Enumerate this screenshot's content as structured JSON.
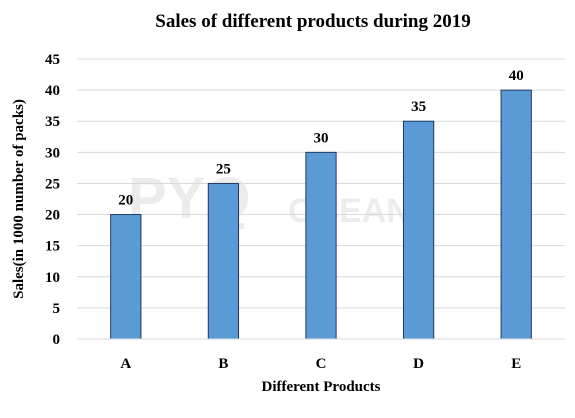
{
  "chart_data": {
    "type": "bar",
    "title": "Sales of different products during 2019",
    "xlabel": "Different Products",
    "ylabel": "Sales(in 1000 number of packs)",
    "categories": [
      "A",
      "B",
      "C",
      "D",
      "E"
    ],
    "values": [
      20,
      25,
      30,
      35,
      40
    ],
    "ylim": [
      0,
      45
    ],
    "yticks": [
      0,
      5,
      10,
      15,
      20,
      25,
      30,
      35,
      40,
      45
    ],
    "grid": true,
    "legend": "none",
    "bar_color": "#5B9BD5",
    "bar_edge_color": "#1F3864"
  },
  "watermark": {
    "main": "PYQ",
    "sub": "OCEAN"
  }
}
